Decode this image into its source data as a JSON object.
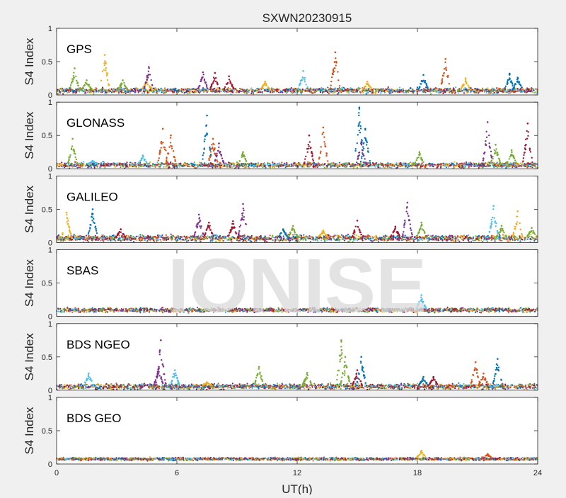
{
  "figure": {
    "title": "SXWN20230915",
    "watermark": "IONISE",
    "xlabel": "UT(h)",
    "ylabel": "S4 Index",
    "colors": [
      "#0072BD",
      "#D95319",
      "#EDB120",
      "#7E2F8E",
      "#77AC30",
      "#4DBEEE",
      "#A2142F"
    ]
  },
  "chart_data": [
    {
      "type": "scatter",
      "title": "GPS",
      "xlabel": "",
      "ylabel": "S4 Index",
      "xlim": [
        0,
        24
      ],
      "ylim": [
        0,
        1
      ],
      "xticks": [
        0,
        6,
        12,
        18,
        24
      ],
      "yticks": [
        0,
        0.5,
        1
      ],
      "ytick_labels": [
        "0",
        "0.5",
        "1"
      ],
      "baseline": 0.08,
      "noise": 0.04,
      "spikes": [
        [
          0.9,
          0.4,
          4
        ],
        [
          1.5,
          0.22,
          4
        ],
        [
          2.4,
          0.6,
          2
        ],
        [
          3.3,
          0.22,
          4
        ],
        [
          4.5,
          0.22,
          2
        ],
        [
          4.6,
          0.42,
          3
        ],
        [
          7.3,
          0.34,
          3
        ],
        [
          7.9,
          0.33,
          6
        ],
        [
          8.6,
          0.28,
          6
        ],
        [
          10.4,
          0.2,
          2
        ],
        [
          12.3,
          0.36,
          5
        ],
        [
          13.9,
          0.64,
          1
        ],
        [
          15.5,
          0.2,
          2
        ],
        [
          18.3,
          0.3,
          0
        ],
        [
          19.4,
          0.54,
          1
        ],
        [
          20.4,
          0.25,
          2
        ],
        [
          22.6,
          0.32,
          0
        ],
        [
          23.0,
          0.26,
          0
        ]
      ]
    },
    {
      "type": "scatter",
      "title": "GLONASS",
      "xlabel": "",
      "ylabel": "S4 Index",
      "xlim": [
        0,
        24
      ],
      "ylim": [
        0,
        1
      ],
      "xticks": [
        0,
        6,
        12,
        18,
        24
      ],
      "yticks": [
        0,
        0.5,
        1
      ],
      "ytick_labels": [
        "0",
        "0.5",
        "1"
      ],
      "baseline": 0.07,
      "noise": 0.04,
      "spikes": [
        [
          0.8,
          0.45,
          4
        ],
        [
          1.8,
          0.12,
          5
        ],
        [
          4.3,
          0.2,
          5
        ],
        [
          5.3,
          0.6,
          1
        ],
        [
          5.7,
          0.5,
          1
        ],
        [
          7.5,
          0.8,
          0
        ],
        [
          7.8,
          0.45,
          1
        ],
        [
          8.1,
          0.38,
          3
        ],
        [
          9.3,
          0.25,
          4
        ],
        [
          12.6,
          0.5,
          6
        ],
        [
          13.3,
          0.62,
          1
        ],
        [
          15.1,
          0.92,
          0
        ],
        [
          15.4,
          0.6,
          0
        ],
        [
          15.2,
          0.4,
          3
        ],
        [
          18.1,
          0.25,
          4
        ],
        [
          21.5,
          0.7,
          3
        ],
        [
          21.9,
          0.36,
          4
        ],
        [
          22.7,
          0.28,
          4
        ],
        [
          23.5,
          0.68,
          6
        ]
      ]
    },
    {
      "type": "scatter",
      "title": "GALILEO",
      "xlabel": "",
      "ylabel": "S4 Index",
      "xlim": [
        0,
        24
      ],
      "ylim": [
        0,
        1
      ],
      "xticks": [
        0,
        6,
        12,
        18,
        24
      ],
      "yticks": [
        0,
        0.5,
        1
      ],
      "ytick_labels": [
        "0",
        "0.5",
        "1"
      ],
      "baseline": 0.08,
      "noise": 0.05,
      "spikes": [
        [
          0.5,
          0.45,
          2
        ],
        [
          1.8,
          0.5,
          0
        ],
        [
          3.2,
          0.2,
          6
        ],
        [
          7.1,
          0.42,
          3
        ],
        [
          7.6,
          0.3,
          6
        ],
        [
          8.8,
          0.32,
          6
        ],
        [
          9.3,
          0.58,
          3
        ],
        [
          11.3,
          0.2,
          0
        ],
        [
          11.8,
          0.25,
          4
        ],
        [
          13.3,
          0.18,
          2
        ],
        [
          15.0,
          0.33,
          6
        ],
        [
          16.9,
          0.24,
          6
        ],
        [
          17.5,
          0.6,
          3
        ],
        [
          18.2,
          0.3,
          4
        ],
        [
          21.8,
          0.55,
          5
        ],
        [
          22.2,
          0.25,
          4
        ],
        [
          23.0,
          0.47,
          2
        ],
        [
          23.7,
          0.22,
          4
        ]
      ]
    },
    {
      "type": "scatter",
      "title": "SBAS",
      "xlabel": "",
      "ylabel": "S4 Index",
      "xlim": [
        0,
        24
      ],
      "ylim": [
        0,
        1
      ],
      "xticks": [
        0,
        6,
        12,
        18,
        24
      ],
      "yticks": [
        0,
        0.5,
        1
      ],
      "ytick_labels": [
        "0",
        "0.5",
        "1"
      ],
      "baseline": 0.11,
      "noise": 0.03,
      "spikes": [
        [
          18.2,
          0.32,
          5
        ]
      ]
    },
    {
      "type": "scatter",
      "title": "BDS NGEO",
      "xlabel": "",
      "ylabel": "S4 Index",
      "xlim": [
        0,
        24
      ],
      "ylim": [
        0,
        1
      ],
      "xticks": [
        0,
        6,
        12,
        18,
        24
      ],
      "yticks": [
        0,
        0.5,
        1
      ],
      "ytick_labels": [
        "0",
        "0.5",
        "1"
      ],
      "baseline": 0.07,
      "noise": 0.04,
      "spikes": [
        [
          1.6,
          0.25,
          5
        ],
        [
          5.1,
          0.35,
          3
        ],
        [
          5.2,
          0.75,
          3
        ],
        [
          5.9,
          0.3,
          5
        ],
        [
          7.5,
          0.12,
          2
        ],
        [
          10.1,
          0.35,
          4
        ],
        [
          12.5,
          0.26,
          4
        ],
        [
          14.2,
          0.75,
          4
        ],
        [
          14.4,
          0.5,
          4
        ],
        [
          15.2,
          0.5,
          0
        ],
        [
          15.0,
          0.3,
          6
        ],
        [
          18.3,
          0.2,
          0
        ],
        [
          18.8,
          0.2,
          6
        ],
        [
          20.9,
          0.42,
          1
        ],
        [
          22.0,
          0.47,
          0
        ],
        [
          21.3,
          0.25,
          1
        ]
      ]
    },
    {
      "type": "scatter",
      "title": "BDS GEO",
      "xlabel": "UT(h)",
      "ylabel": "S4 Index",
      "xlim": [
        0,
        24
      ],
      "ylim": [
        0,
        1
      ],
      "xticks": [
        0,
        6,
        12,
        18,
        24
      ],
      "yticks": [
        0,
        0.5,
        1
      ],
      "ytick_labels": [
        "0",
        "0.5",
        "1"
      ],
      "baseline": 0.09,
      "noise": 0.015,
      "spikes": [
        [
          18.2,
          0.2,
          2
        ],
        [
          21.5,
          0.15,
          1
        ]
      ]
    }
  ]
}
